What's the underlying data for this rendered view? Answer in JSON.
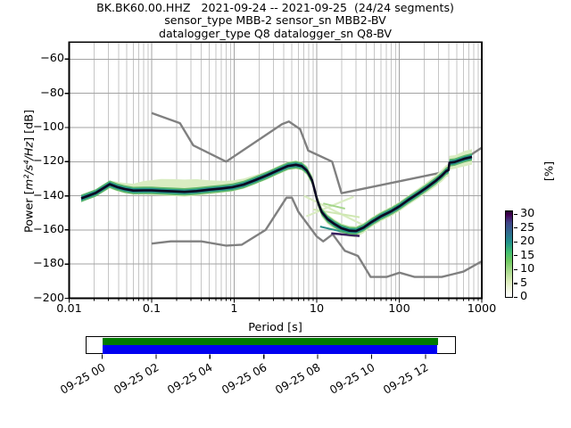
{
  "title": {
    "line1": "BK.BK60.00.HHZ   2021-09-24 -- 2021-09-25  (24/24 segments)",
    "line2": "sensor_type MBB-2 sensor_sn MBB2-BV",
    "line3": "datalogger_type Q8 datalogger_sn Q8-BV"
  },
  "axes": {
    "xlabel": "Period [s]",
    "ylabel_prefix": "Power [",
    "ylabel_math": "m²/s⁴/Hz",
    "ylabel_suffix": "] [dB]",
    "xtick_labels": [
      "0.01",
      "0.1",
      "1",
      "10",
      "100",
      "1000"
    ],
    "xtick_values": [
      0.01,
      0.1,
      1,
      10,
      100,
      1000
    ],
    "ytick_labels": [
      "−60",
      "−80",
      "−100",
      "−120",
      "−140",
      "−160",
      "−180",
      "−200"
    ],
    "ytick_values": [
      -60,
      -80,
      -100,
      -120,
      -140,
      -160,
      -180,
      -200
    ]
  },
  "colorbar": {
    "label": "[%]",
    "tick_labels": [
      "30",
      "25",
      "20",
      "15",
      "10",
      "5",
      "0"
    ],
    "tick_values": [
      30,
      25,
      20,
      15,
      10,
      5,
      0
    ],
    "gradient_bottom_to_top": [
      "#ffffff",
      "#dcedbb",
      "#aadb8e",
      "#70c961",
      "#21918c",
      "#31688e",
      "#414487",
      "#440154"
    ]
  },
  "timeline": {
    "tick_labels": [
      "09-25 00",
      "09-25 02",
      "09-25 04",
      "09-25 06",
      "09-25 08",
      "09-25 10",
      "09-25 12"
    ],
    "coverage_color_top": "#007a00",
    "coverage_color_bottom": "#0000f0"
  },
  "chart_data": {
    "type": "heatmap",
    "title": "BK.BK60.00.HHZ 2021-09-24 -- 2021-09-25 (24/24 segments)",
    "xlabel": "Period [s]",
    "ylabel": "Power [m^2/s^4/Hz] [dB]",
    "xscale": "log",
    "xlim": [
      0.01,
      1000
    ],
    "ylim": [
      -200,
      -50
    ],
    "grid": true,
    "percent_axis": {
      "label": "[%]",
      "ticks": [
        0,
        5,
        10,
        15,
        20,
        25,
        30
      ]
    },
    "series": [
      {
        "name": "psd_mode",
        "color": "#0b0722",
        "points": [
          [
            0.014,
            -141.5
          ],
          [
            0.017,
            -140.0
          ],
          [
            0.021,
            -138.3
          ],
          [
            0.025,
            -136.0
          ],
          [
            0.031,
            -133.2
          ],
          [
            0.038,
            -134.8
          ],
          [
            0.047,
            -136.0
          ],
          [
            0.06,
            -136.9
          ],
          [
            0.08,
            -136.8
          ],
          [
            0.1,
            -136.8
          ],
          [
            0.13,
            -137.1
          ],
          [
            0.18,
            -137.4
          ],
          [
            0.25,
            -137.7
          ],
          [
            0.35,
            -137.2
          ],
          [
            0.5,
            -136.4
          ],
          [
            0.7,
            -135.7
          ],
          [
            0.95,
            -135.0
          ],
          [
            1.3,
            -133.4
          ],
          [
            1.8,
            -130.8
          ],
          [
            2.5,
            -128.0
          ],
          [
            3.4,
            -125.0
          ],
          [
            4.5,
            -122.5
          ],
          [
            5.6,
            -121.8
          ],
          [
            6.6,
            -122.6
          ],
          [
            7.6,
            -125.2
          ],
          [
            8.8,
            -131.0
          ],
          [
            10.2,
            -143.0
          ],
          [
            11.5,
            -149.5
          ],
          [
            13.5,
            -153.6
          ],
          [
            16.5,
            -156.6
          ],
          [
            20,
            -159.0
          ],
          [
            25,
            -160.4
          ],
          [
            30,
            -160.6
          ],
          [
            37,
            -158.6
          ],
          [
            46,
            -155.4
          ],
          [
            60,
            -152.0
          ],
          [
            80,
            -149.0
          ],
          [
            100,
            -146.2
          ],
          [
            130,
            -142.3
          ],
          [
            170,
            -138.6
          ],
          [
            220,
            -134.8
          ],
          [
            280,
            -131.0
          ],
          [
            330,
            -128.0
          ],
          [
            370,
            -125.5
          ],
          [
            395,
            -125.0
          ],
          [
            405,
            -120.6
          ],
          [
            470,
            -120.2
          ],
          [
            540,
            -119.2
          ],
          [
            620,
            -118.2
          ],
          [
            760,
            -117.2
          ]
        ],
        "band_upper_db_offset": [
          1.5,
          2,
          2,
          2.2,
          2.2,
          3,
          3.5,
          4,
          5.5,
          6,
          7,
          7.2,
          7.2,
          7,
          5.5,
          4.5,
          4,
          3.5,
          3,
          2.5,
          2.5,
          2.5,
          2.5,
          2.5,
          2.8,
          3,
          3,
          3,
          2.8,
          2.8,
          2.8,
          2.8,
          2.8,
          2.8,
          2.8,
          2.8,
          2.8,
          2.8,
          2.8,
          3,
          3.2,
          3.4,
          3.6,
          3.6,
          3.6,
          4,
          4,
          4.2,
          4.5,
          4.5
        ],
        "band_lower_db_offset": [
          1.5,
          2,
          2,
          2.2,
          2.5,
          2.5,
          2.5,
          2.5,
          2.5,
          2.8,
          2.8,
          2.8,
          2.8,
          2.8,
          2.8,
          2.5,
          2.5,
          2.5,
          2.5,
          2.5,
          2.5,
          2.5,
          2.5,
          2.5,
          2.8,
          3,
          3,
          3,
          3,
          3.2,
          3.4,
          3.6,
          3.6,
          3.2,
          3,
          3,
          3,
          3,
          3,
          3,
          3.2,
          3.4,
          3.6,
          3.6,
          3.6,
          4,
          4,
          4.2,
          4.5,
          4.5
        ]
      },
      {
        "name": "noise_model_high_NHNM",
        "color": "#808080",
        "points": [
          [
            0.1,
            -91.5
          ],
          [
            0.22,
            -97.4
          ],
          [
            0.32,
            -110.5
          ],
          [
            0.8,
            -120.0
          ],
          [
            3.8,
            -98.0
          ],
          [
            4.6,
            -96.5
          ],
          [
            6.3,
            -101.0
          ],
          [
            7.9,
            -113.5
          ],
          [
            15.4,
            -120.0
          ],
          [
            20,
            -138.5
          ],
          [
            354.8,
            -126.0
          ],
          [
            1000,
            -111.8
          ]
        ]
      },
      {
        "name": "noise_model_low_NLNM",
        "color": "#808080",
        "points": [
          [
            0.1,
            -168.0
          ],
          [
            0.17,
            -166.7
          ],
          [
            0.4,
            -166.7
          ],
          [
            0.8,
            -169.2
          ],
          [
            1.24,
            -168.6
          ],
          [
            2.4,
            -160.0
          ],
          [
            4.3,
            -141.1
          ],
          [
            5.0,
            -141.1
          ],
          [
            6.0,
            -149.4
          ],
          [
            10,
            -163.8
          ],
          [
            12,
            -166.7
          ],
          [
            15.6,
            -162.5
          ],
          [
            21.9,
            -172.2
          ],
          [
            31.6,
            -175.2
          ],
          [
            45,
            -187.5
          ],
          [
            70,
            -187.5
          ],
          [
            101,
            -185.0
          ],
          [
            154,
            -187.5
          ],
          [
            328,
            -187.5
          ],
          [
            600,
            -184.4
          ],
          [
            1000,
            -178.3
          ]
        ]
      }
    ],
    "low_probability_streaks": [
      {
        "color": "#d9ecc1",
        "width": 2.2,
        "points": [
          [
            7,
            -140
          ],
          [
            40,
            -158
          ]
        ]
      },
      {
        "color": "#d9ecc1",
        "width": 2.2,
        "points": [
          [
            7.5,
            -152
          ],
          [
            28,
            -140.5
          ]
        ]
      },
      {
        "color": "#cfe7b2",
        "width": 2.0,
        "points": [
          [
            9,
            -148
          ],
          [
            33,
            -152.5
          ]
        ]
      },
      {
        "color": "#a5d68b",
        "width": 2.0,
        "points": [
          [
            12,
            -144.5
          ],
          [
            22,
            -147.5
          ]
        ]
      },
      {
        "color": "#3a2160",
        "width": 2.5,
        "points": [
          [
            15,
            -162
          ],
          [
            33,
            -163.5
          ]
        ]
      },
      {
        "color": "#2a8f88",
        "width": 2.0,
        "points": [
          [
            11,
            -158
          ],
          [
            24,
            -161.8
          ]
        ]
      }
    ],
    "band_colors": {
      "pale": "#d9ecc1",
      "green": "#52b360",
      "teal": "#21918c",
      "core": "#0b0722"
    }
  }
}
